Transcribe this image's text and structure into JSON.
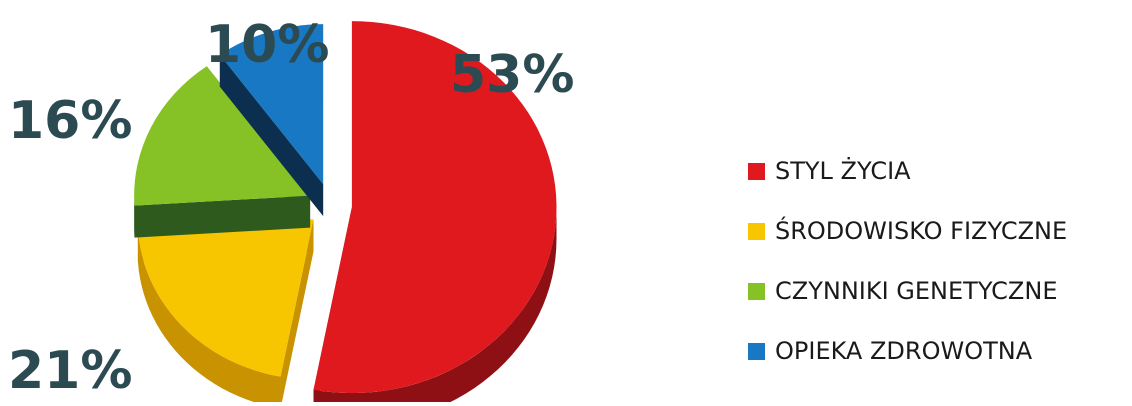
{
  "chart_data": {
    "type": "pie",
    "style": "3d-exploded",
    "title": "",
    "legend_position": "right",
    "slices": [
      {
        "label": "STYL ŻYCIA",
        "value": 53,
        "display": "53%",
        "color": "#e0191f",
        "side_color": "#8e1014"
      },
      {
        "label": "ŚRODOWISKO FIZYCZNE",
        "value": 21,
        "display": "21%",
        "color": "#f7c600",
        "side_color": "#c89200"
      },
      {
        "label": "CZYNNIKI GENETYCZNE",
        "value": 16,
        "display": "16%",
        "color": "#86c225",
        "side_color": "#2f5a1e"
      },
      {
        "label": "OPIEKA ZDROWOTNA",
        "value": 10,
        "display": "10%",
        "color": "#1878c4",
        "side_color": "#0d2f4f"
      }
    ]
  }
}
